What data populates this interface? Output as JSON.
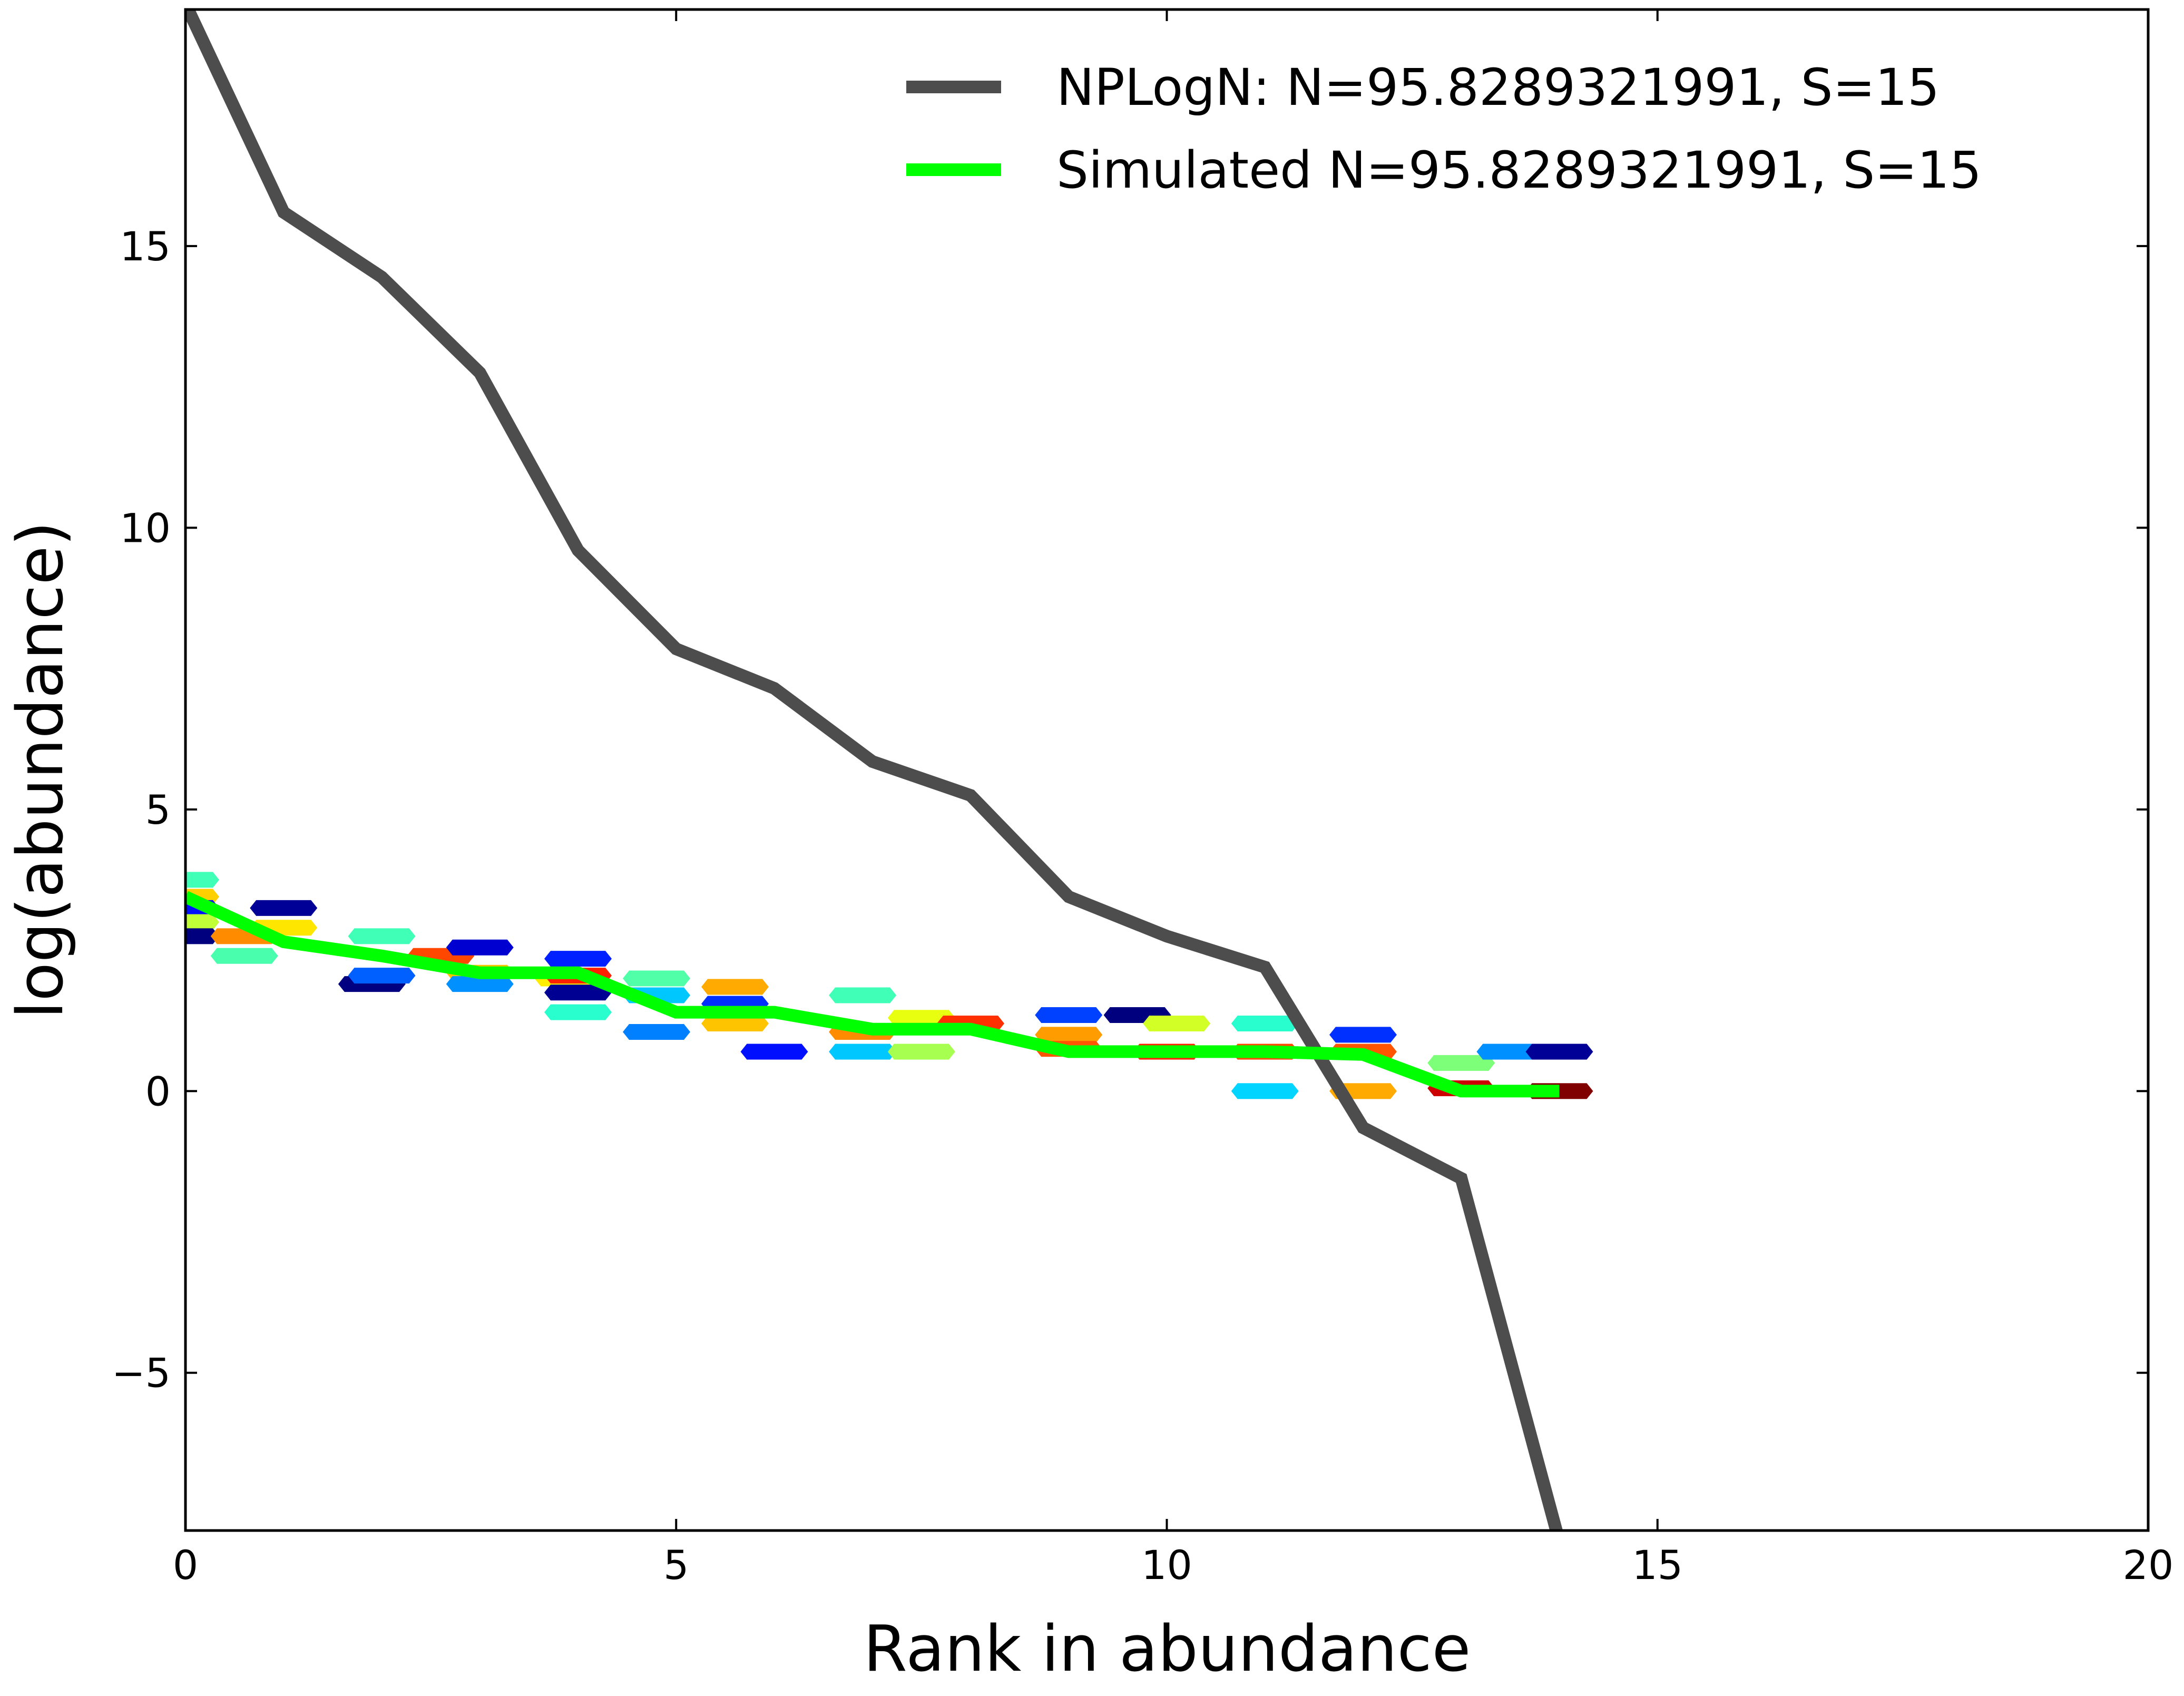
{
  "chart_data": {
    "type": "line",
    "xlabel": "Rank in abundance",
    "ylabel": "log(abundance)",
    "xlim": [
      0,
      20
    ],
    "ylim": [
      -7.8,
      19.2
    ],
    "x_ticks": [
      0,
      5,
      10,
      15,
      20
    ],
    "y_ticks": [
      -5,
      0,
      5,
      10,
      15
    ],
    "x_tick_labels": [
      "0",
      "5",
      "10",
      "15",
      "20"
    ],
    "y_tick_labels": [
      "−5",
      "0",
      "5",
      "10",
      "15"
    ],
    "grid": false,
    "legend_position": "top-right",
    "series": [
      {
        "name": "NPLogN: N=95.8289321991, S=15",
        "color": "#4d4d4d",
        "x": [
          0,
          1,
          2,
          3,
          4,
          5,
          6,
          7,
          8,
          9,
          10,
          11,
          12,
          13,
          14
        ],
        "y": [
          19.3,
          15.6,
          14.45,
          12.75,
          9.6,
          7.85,
          7.15,
          5.85,
          5.25,
          3.45,
          2.75,
          2.2,
          -0.65,
          -1.55,
          -8.0
        ]
      },
      {
        "name": "Simulated N=95.8289321991, S=15",
        "color": "#00ff00",
        "x": [
          0,
          1,
          2,
          3,
          4,
          5,
          6,
          7,
          8,
          9,
          10,
          11,
          12,
          13,
          14
        ],
        "y": [
          3.45,
          2.65,
          2.4,
          2.1,
          2.1,
          1.4,
          1.4,
          1.1,
          1.1,
          0.7,
          0.7,
          0.7,
          0.65,
          0.0,
          0.0
        ]
      }
    ],
    "simulated_samples": [
      {
        "x": 0,
        "y": 3.75,
        "color": "#40ffb7"
      },
      {
        "x": 0,
        "y": 3.45,
        "color": "#ffd000"
      },
      {
        "x": 0,
        "y": 3.25,
        "color": "#0010ff"
      },
      {
        "x": 0,
        "y": 3.0,
        "color": "#c1ff36"
      },
      {
        "x": 0,
        "y": 2.75,
        "color": "#00007f"
      },
      {
        "x": 0.6,
        "y": 2.75,
        "color": "#ff8c00"
      },
      {
        "x": 0.6,
        "y": 2.4,
        "color": "#49ffad"
      },
      {
        "x": 1,
        "y": 3.25,
        "color": "#000096"
      },
      {
        "x": 1,
        "y": 2.9,
        "color": "#ffe600"
      },
      {
        "x": 1.9,
        "y": 1.9,
        "color": "#000080"
      },
      {
        "x": 2,
        "y": 2.75,
        "color": "#40ffb7"
      },
      {
        "x": 2,
        "y": 2.05,
        "color": "#0060ff"
      },
      {
        "x": 2.6,
        "y": 2.4,
        "color": "#ff4700"
      },
      {
        "x": 3,
        "y": 2.55,
        "color": "#0000d1"
      },
      {
        "x": 3,
        "y": 2.1,
        "color": "#ffc400"
      },
      {
        "x": 3,
        "y": 1.9,
        "color": "#0090ff"
      },
      {
        "x": 3.9,
        "y": 2.0,
        "color": "#ffee00"
      },
      {
        "x": 4,
        "y": 2.35,
        "color": "#0020ff"
      },
      {
        "x": 4,
        "y": 2.05,
        "color": "#ff2000"
      },
      {
        "x": 4,
        "y": 1.75,
        "color": "#000093"
      },
      {
        "x": 4,
        "y": 1.4,
        "color": "#29ffce"
      },
      {
        "x": 4.8,
        "y": 2.0,
        "color": "#50ffa7"
      },
      {
        "x": 4.8,
        "y": 1.7,
        "color": "#00c8ff"
      },
      {
        "x": 4.8,
        "y": 1.05,
        "color": "#0080ff"
      },
      {
        "x": 5.6,
        "y": 1.85,
        "color": "#ffaa00"
      },
      {
        "x": 5.6,
        "y": 1.55,
        "color": "#0030ff"
      },
      {
        "x": 5.6,
        "y": 1.2,
        "color": "#ffc400"
      },
      {
        "x": 6,
        "y": 0.7,
        "color": "#0010ff"
      },
      {
        "x": 6.9,
        "y": 1.7,
        "color": "#40ffb7"
      },
      {
        "x": 6.9,
        "y": 1.05,
        "color": "#ff8c00"
      },
      {
        "x": 6.9,
        "y": 0.7,
        "color": "#00c8ff"
      },
      {
        "x": 7.5,
        "y": 1.3,
        "color": "#e8ff0f"
      },
      {
        "x": 7.5,
        "y": 0.7,
        "color": "#a7ff50"
      },
      {
        "x": 8,
        "y": 1.2,
        "color": "#ff3000"
      },
      {
        "x": 9,
        "y": 1.35,
        "color": "#0040ff"
      },
      {
        "x": 9,
        "y": 1.0,
        "color": "#ff9c00"
      },
      {
        "x": 9,
        "y": 0.75,
        "color": "#ff5500"
      },
      {
        "x": 9.7,
        "y": 1.35,
        "color": "#00007f"
      },
      {
        "x": 10,
        "y": 0.7,
        "color": "#ff2000"
      },
      {
        "x": 10.1,
        "y": 1.2,
        "color": "#d1ff26"
      },
      {
        "x": 11,
        "y": 1.2,
        "color": "#29ffce"
      },
      {
        "x": 11,
        "y": 0.7,
        "color": "#ff4700"
      },
      {
        "x": 11,
        "y": 0.0,
        "color": "#00d4ff"
      },
      {
        "x": 12,
        "y": 1.0,
        "color": "#0030ff"
      },
      {
        "x": 12,
        "y": 0.7,
        "color": "#ff5500"
      },
      {
        "x": 12,
        "y": 0.0,
        "color": "#ffaa00"
      },
      {
        "x": 13,
        "y": 0.5,
        "color": "#7dff7a"
      },
      {
        "x": 13,
        "y": 0.05,
        "color": "#cc0000"
      },
      {
        "x": 13.5,
        "y": 0.7,
        "color": "#0090ff"
      },
      {
        "x": 14,
        "y": 0.7,
        "color": "#000096"
      },
      {
        "x": 14,
        "y": 0.0,
        "color": "#800000"
      }
    ]
  }
}
